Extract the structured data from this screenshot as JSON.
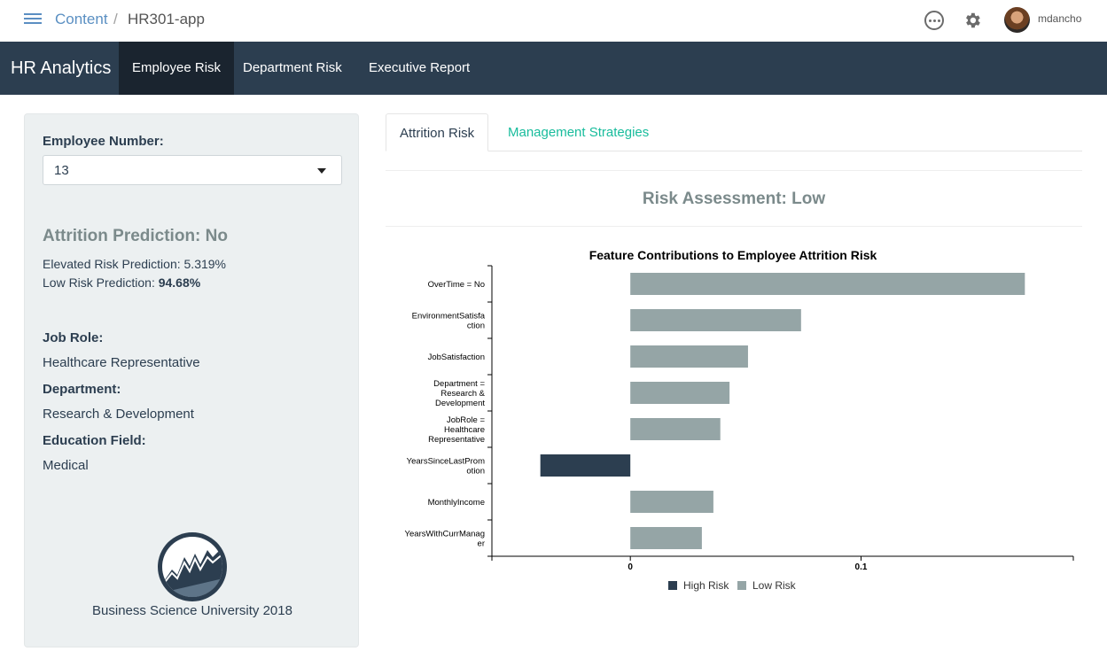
{
  "topbar": {
    "breadcrumb_root": "Content",
    "breadcrumb_sep": "/",
    "breadcrumb_app": "HR301-app",
    "username": "mdancho"
  },
  "navbar": {
    "brand": "HR Analytics",
    "tabs": [
      {
        "label": "Employee Risk",
        "active": true
      },
      {
        "label": "Department Risk",
        "active": false
      },
      {
        "label": "Executive Report",
        "active": false
      }
    ]
  },
  "sidebar": {
    "employee_label": "Employee Number:",
    "employee_value": "13",
    "prediction_title": "Attrition Prediction: No",
    "elevated_label": "Elevated Risk Prediction: 5.319%",
    "low_label": "Low Risk Prediction: ",
    "low_value": "94.68%",
    "job_role_label": "Job Role:",
    "job_role_value": "Healthcare Representative",
    "department_label": "Department:",
    "department_value": "Research & Development",
    "education_label": "Education Field:",
    "education_value": "Medical",
    "footer": "Business Science University 2018"
  },
  "main": {
    "tabs": [
      {
        "label": "Attrition Risk",
        "active": true
      },
      {
        "label": "Management Strategies",
        "active": false
      }
    ],
    "risk_title": "Risk Assessment: Low"
  },
  "colors": {
    "navbar": "#2c3e50",
    "high_risk": "#2c3e50",
    "low_risk": "#95a5a6",
    "accent": "#18bc9c"
  },
  "chart_data": {
    "type": "bar",
    "orientation": "horizontal",
    "title": "Feature Contributions to Employee Attrition Risk",
    "categories": [
      "OverTime = No",
      "EnvironmentSatisfaction",
      "JobSatisfaction",
      "Department = Research & Development",
      "JobRole = Healthcare Representative",
      "YearsSinceLastPromotion",
      "MonthlyIncome",
      "YearsWithCurrManager"
    ],
    "category_lines": [
      [
        "OverTime = No"
      ],
      [
        "EnvironmentSatisfa",
        "ction"
      ],
      [
        "JobSatisfaction"
      ],
      [
        "Department =",
        "Research &",
        "Development"
      ],
      [
        "JobRole =",
        "Healthcare",
        "Representative"
      ],
      [
        "YearsSinceLastProm",
        "otion"
      ],
      [
        "MonthlyIncome"
      ],
      [
        "YearsWithCurrManag",
        "er"
      ]
    ],
    "values": [
      0.171,
      0.074,
      0.051,
      0.043,
      0.039,
      -0.039,
      0.036,
      0.031
    ],
    "series": [
      {
        "name": "High Risk",
        "color": "#2c3e50"
      },
      {
        "name": "Low Risk",
        "color": "#95a5a6"
      }
    ],
    "xlim": [
      -0.06,
      0.192
    ],
    "xticks": [
      0,
      0.1
    ],
    "xtick_labels": [
      "0",
      "0.1"
    ],
    "legend": "bottom-center"
  }
}
